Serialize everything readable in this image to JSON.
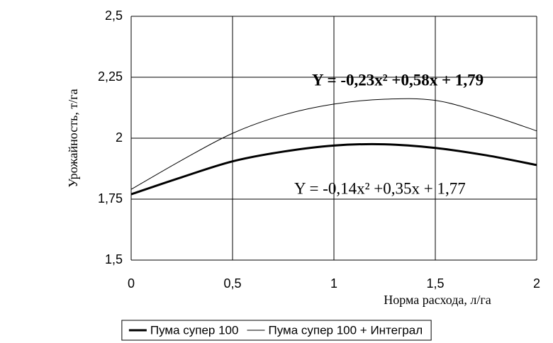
{
  "chart_data": {
    "type": "line",
    "x": [
      0,
      0.25,
      0.5,
      0.75,
      1,
      1.25,
      1.5,
      1.75,
      2
    ],
    "series": [
      {
        "name": "Пума супер 100",
        "color": "#000000",
        "width": 3,
        "values": [
          1.77,
          1.84,
          1.905,
          1.945,
          1.97,
          1.975,
          1.96,
          1.93,
          1.89
        ]
      },
      {
        "name": "Пума супер 100 + Интеграл",
        "color": "#000000",
        "width": 1,
        "values": [
          1.79,
          1.91,
          2.02,
          2.095,
          2.14,
          2.16,
          2.155,
          2.1,
          2.03
        ]
      }
    ],
    "xlim": [
      0,
      2
    ],
    "xticks": [
      0,
      {
        "value": 0.5,
        "label": "0,5"
      },
      1,
      {
        "value": 1.5,
        "label": "1,5"
      },
      2
    ],
    "ylim": [
      1.5,
      2.5
    ],
    "yticks": [
      {
        "value": 1.5,
        "label": "1,5"
      },
      {
        "value": 1.75,
        "label": "1,75"
      },
      2,
      {
        "value": 2.25,
        "label": "2,25"
      },
      {
        "value": 2.5,
        "label": "2,5"
      }
    ],
    "ylabel": "Урожайность, т/га",
    "xlabel": "Норма расхода, л/га",
    "annotations": [
      "Y = -0,23x² +0,58x + 1,79",
      "Y = -0,14x² +0,35x + 1,77"
    ],
    "grid": true,
    "legend": "bottom"
  }
}
